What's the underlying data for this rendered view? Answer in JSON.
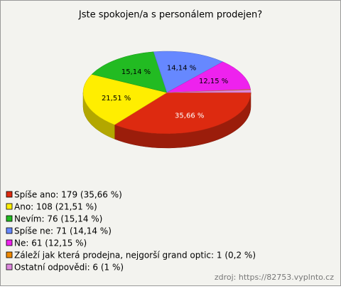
{
  "chart_data": {
    "type": "pie3d",
    "title": "Jste spokojen/a s personálem prodejen?",
    "categories": [
      "Spíše ano: 179 (35,66 %)",
      "Ano: 108 (21,51 %)",
      "Nevím: 76 (15,14 %)",
      "Spíše ne: 71 (14,14 %)",
      "Ne: 61 (12,15 %)",
      "Záleží jak která prodejna, nejgorší grand optic: 1 (0,2 %)",
      "Ostatní odpovědi: 6 (1 %)"
    ],
    "values": [
      35.66,
      21.51,
      15.14,
      14.14,
      12.15,
      0.2,
      1
    ],
    "value_labels": [
      "35,66 %",
      "21,51 %",
      "15,14 %",
      "14,14 %",
      "12,15 %",
      null,
      null
    ],
    "colors": [
      "#dd2a10",
      "#ffee00",
      "#22bb22",
      "#6688ff",
      "#ee22ee",
      "#ee8800",
      "#dd88dd"
    ],
    "source": "zdroj: https://82753.vyplnto.cz"
  }
}
